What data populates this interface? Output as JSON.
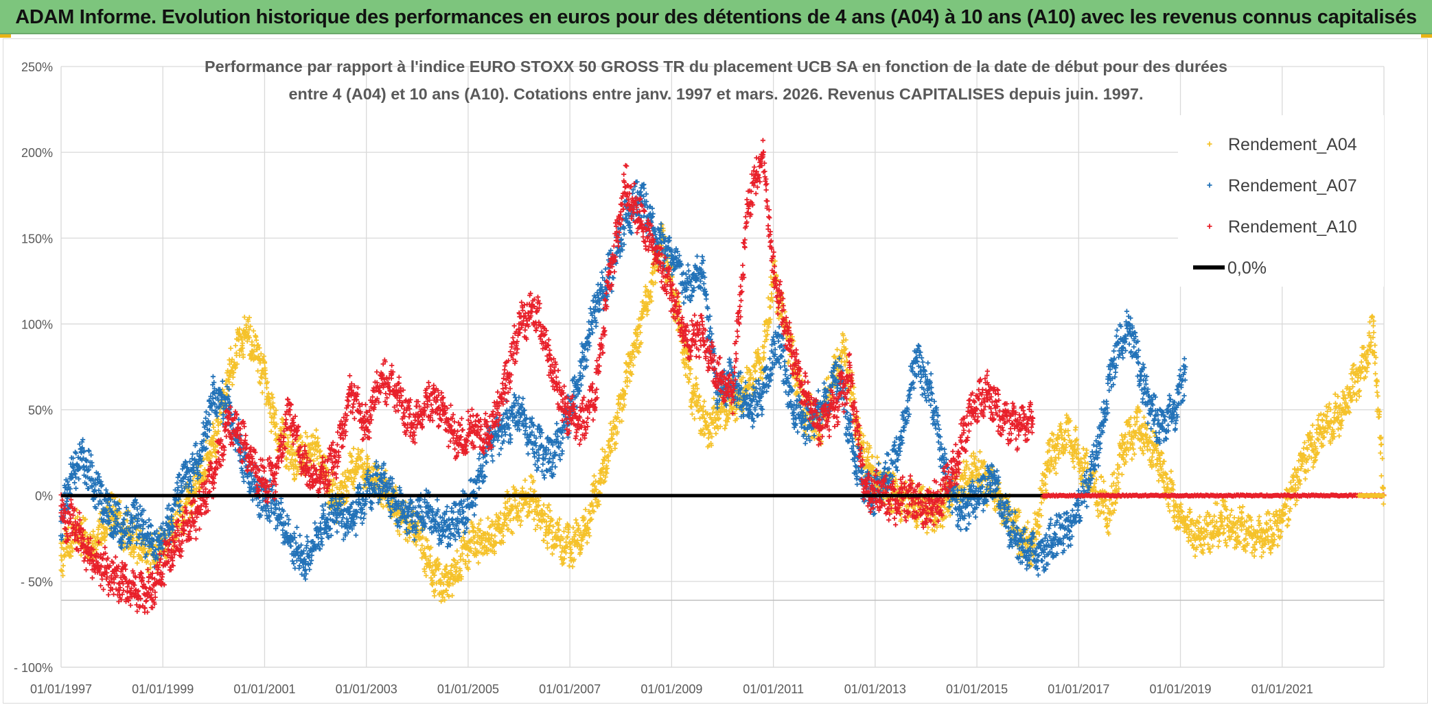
{
  "banner": {
    "title": "ADAM Informe. Evolution historique des performances en euros pour des détentions de 4 ans (A04) à 10 ans (A10) avec les revenus connus capitalisés"
  },
  "chart_data": {
    "type": "scatter",
    "title_line1": "Performance par rapport à l'indice EURO STOXX 50 GROSS TR  du placement UCB SA en fonction de la date de début pour des durées",
    "title_line2": "entre 4 (A04) et 10 ans (A10). Cotations entre janv. 1997 et mars. 2026. Revenus CAPITALISES depuis juin. 1997.",
    "xlabel": "",
    "ylabel": "",
    "x_range": [
      1997.0,
      2023.0
    ],
    "ylim": [
      -100,
      250
    ],
    "y_ticks": [
      -100,
      -50,
      0,
      50,
      100,
      150,
      200,
      250
    ],
    "y_tick_labels": [
      "- 100%",
      "- 50%",
      "0%",
      "50%",
      "100%",
      "150%",
      "200%",
      "250%"
    ],
    "x_ticks": [
      1997,
      1999,
      2001,
      2003,
      2005,
      2007,
      2009,
      2011,
      2013,
      2015,
      2017,
      2019,
      2021
    ],
    "x_tick_labels": [
      "01/01/1997",
      "01/01/1999",
      "01/01/2001",
      "01/01/2003",
      "01/01/2005",
      "01/01/2007",
      "01/01/2009",
      "01/01/2011",
      "01/01/2013",
      "01/01/2015",
      "01/01/2017",
      "01/01/2019",
      "01/01/2021"
    ],
    "legend_position": "top-right",
    "series": [
      {
        "name": "Rendement_A04",
        "color": "#f5c22b",
        "x": [
          1997.0,
          1997.3,
          1997.6,
          1998.0,
          1998.4,
          1998.8,
          1999.2,
          1999.6,
          2000.0,
          2000.3,
          2000.6,
          2000.9,
          2001.2,
          2001.6,
          2002.0,
          2002.4,
          2002.8,
          2003.2,
          2003.6,
          2004.0,
          2004.3,
          2004.6,
          2005.0,
          2005.4,
          2005.8,
          2006.2,
          2006.6,
          2007.0,
          2007.3,
          2007.6,
          2007.9,
          2008.2,
          2008.5,
          2008.8,
          2009.1,
          2009.4,
          2009.7,
          2010.0,
          2010.4,
          2010.8,
          2011.0,
          2011.3,
          2011.6,
          2011.9,
          2012.1,
          2012.4,
          2012.7,
          2013.0,
          2013.4,
          2013.8,
          2014.2,
          2014.6,
          2015.0,
          2015.4,
          2015.8,
          2016.1,
          2016.4,
          2016.8,
          2017.2,
          2017.6,
          2017.9,
          2018.2,
          2018.6,
          2019.0,
          2019.4,
          2019.8,
          2020.2,
          2020.6,
          2021.0,
          2021.4,
          2021.8,
          2022.2,
          2022.5,
          2022.8,
          2023.0
        ],
        "y": [
          -35,
          -20,
          -30,
          -10,
          -25,
          -35,
          -20,
          0,
          30,
          70,
          95,
          80,
          40,
          20,
          30,
          -5,
          20,
          10,
          -10,
          -20,
          -45,
          -52,
          -30,
          -25,
          -10,
          0,
          -20,
          -30,
          -20,
          10,
          40,
          80,
          110,
          150,
          110,
          60,
          40,
          50,
          60,
          80,
          130,
          90,
          50,
          40,
          60,
          85,
          30,
          10,
          0,
          -5,
          -10,
          5,
          15,
          0,
          -20,
          -30,
          20,
          35,
          10,
          -10,
          30,
          40,
          20,
          -15,
          -25,
          -15,
          -20,
          -25,
          -15,
          20,
          40,
          50,
          70,
          95,
          0
        ]
      },
      {
        "name": "Rendement_A07",
        "color": "#2272b8",
        "x": [
          1997.0,
          1997.2,
          1997.4,
          1997.6,
          1997.9,
          1998.2,
          1998.5,
          1998.8,
          1999.1,
          1999.4,
          1999.7,
          2000.0,
          2000.3,
          2000.6,
          2000.9,
          2001.2,
          2001.5,
          2001.8,
          2002.1,
          2002.4,
          2002.7,
          2003.0,
          2003.3,
          2003.6,
          2003.9,
          2004.2,
          2004.5,
          2004.8,
          2005.1,
          2005.4,
          2005.7,
          2006.0,
          2006.3,
          2006.6,
          2006.9,
          2007.2,
          2007.5,
          2007.8,
          2008.1,
          2008.4,
          2008.7,
          2009.0,
          2009.3,
          2009.6,
          2009.9,
          2010.2,
          2010.5,
          2010.8,
          2011.1,
          2011.4,
          2011.7,
          2012.0,
          2012.3,
          2012.6,
          2012.9,
          2013.2,
          2013.5,
          2013.8,
          2014.1,
          2014.4,
          2014.7,
          2015.0,
          2015.3,
          2015.6,
          2015.9,
          2016.2,
          2016.5,
          2016.8,
          2017.1,
          2017.4,
          2017.7,
          2018.0,
          2018.3,
          2018.6,
          2018.9,
          2019.1
        ],
        "y": [
          -15,
          10,
          25,
          10,
          -10,
          -20,
          -15,
          -30,
          -20,
          10,
          20,
          60,
          50,
          20,
          0,
          -5,
          -25,
          -40,
          -20,
          -10,
          -15,
          0,
          10,
          -5,
          -15,
          -10,
          -20,
          -15,
          0,
          30,
          40,
          50,
          30,
          20,
          40,
          70,
          110,
          130,
          160,
          175,
          150,
          140,
          120,
          130,
          60,
          70,
          50,
          60,
          90,
          50,
          40,
          55,
          70,
          20,
          0,
          10,
          30,
          80,
          60,
          10,
          -10,
          0,
          10,
          -15,
          -30,
          -35,
          -25,
          -20,
          0,
          30,
          80,
          100,
          60,
          40,
          50,
          75
        ]
      },
      {
        "name": "Rendement_A10",
        "color": "#e8202a",
        "x": [
          1997.0,
          1997.3,
          1997.6,
          1997.9,
          1998.2,
          1998.5,
          1998.8,
          1999.1,
          1999.4,
          1999.7,
          2000.0,
          2000.3,
          2000.6,
          2000.9,
          2001.2,
          2001.5,
          2001.8,
          2002.1,
          2002.4,
          2002.7,
          2003.0,
          2003.3,
          2003.6,
          2003.9,
          2004.2,
          2004.5,
          2004.8,
          2005.1,
          2005.4,
          2005.7,
          2006.0,
          2006.3,
          2006.6,
          2006.9,
          2007.2,
          2007.5,
          2007.8,
          2008.1,
          2008.4,
          2008.7,
          2009.0,
          2009.3,
          2009.6,
          2009.9,
          2010.2,
          2010.5,
          2010.8,
          2011.0,
          2011.3,
          2011.6,
          2011.9,
          2012.2,
          2012.5,
          2012.8,
          2013.1,
          2013.4,
          2013.7,
          2014.0,
          2014.3,
          2014.6,
          2014.9,
          2015.2,
          2015.5,
          2015.8,
          2016.1
        ],
        "y": [
          -10,
          -20,
          -35,
          -45,
          -50,
          -58,
          -55,
          -35,
          -20,
          -10,
          10,
          45,
          30,
          10,
          10,
          50,
          15,
          10,
          20,
          60,
          40,
          70,
          60,
          40,
          55,
          50,
          30,
          40,
          35,
          60,
          100,
          110,
          80,
          50,
          40,
          60,
          130,
          180,
          160,
          140,
          120,
          90,
          95,
          70,
          60,
          170,
          200,
          130,
          90,
          60,
          40,
          50,
          70,
          5,
          0,
          -5,
          0,
          -10,
          0,
          20,
          50,
          60,
          45,
          40,
          45
        ]
      },
      {
        "name": "0,0%",
        "color": "#000000",
        "x": [
          1997.0,
          2023.0
        ],
        "y": [
          0,
          0
        ]
      }
    ]
  }
}
